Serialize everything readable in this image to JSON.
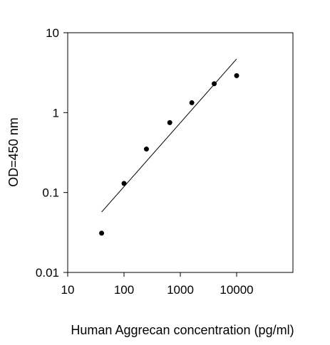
{
  "chart_data": {
    "type": "scatter",
    "title": "",
    "xlabel": "Human Aggrecan concentration (pg/ml)",
    "ylabel": "OD=450 nm",
    "x_scale": "log",
    "y_scale": "log",
    "xlim": [
      10,
      100000
    ],
    "ylim": [
      0.01,
      10
    ],
    "x_ticks": [
      10,
      100,
      1000,
      10000
    ],
    "x_tick_labels": [
      "10",
      "100",
      "1000",
      "10000"
    ],
    "y_ticks": [
      0.01,
      0.1,
      1,
      10
    ],
    "y_tick_labels": [
      "0.01",
      "0.1",
      "1",
      "10"
    ],
    "grid": false,
    "legend": "none",
    "series": [
      {
        "values": [
          {
            "x": 40,
            "y": 0.031
          },
          {
            "x": 100,
            "y": 0.13
          },
          {
            "x": 250,
            "y": 0.35
          },
          {
            "x": 650,
            "y": 0.75
          },
          {
            "x": 1600,
            "y": 1.33
          },
          {
            "x": 4000,
            "y": 2.3
          },
          {
            "x": 10000,
            "y": 2.9
          }
        ]
      }
    ],
    "fit_line": {
      "type": "linear-log-log",
      "points": [
        {
          "x": 40,
          "y": 0.057
        },
        {
          "x": 10000,
          "y": 4.7
        }
      ]
    },
    "colors": {
      "marker": "#000000",
      "line": "#000000",
      "axes": "#000000"
    }
  }
}
